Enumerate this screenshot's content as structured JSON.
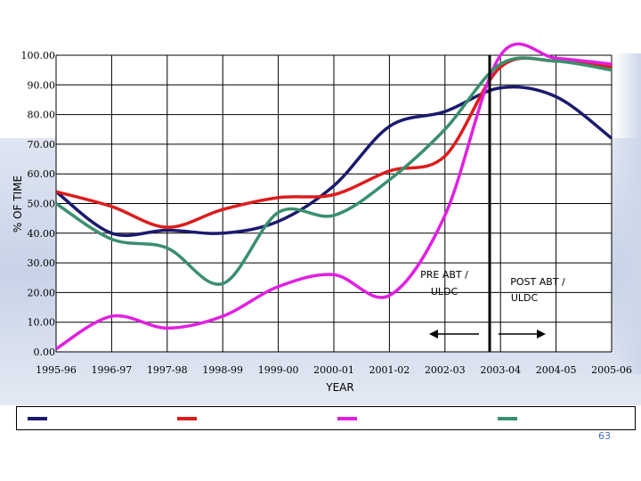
{
  "chart_data": {
    "type": "line",
    "ylabel": "% OF TIME",
    "xlabel": "YEAR",
    "ylim": [
      0,
      100
    ],
    "yticks": [
      "0.00",
      "10.00",
      "20.00",
      "30.00",
      "40.00",
      "50.00",
      "60.00",
      "70.00",
      "80.00",
      "90.00",
      "100.00"
    ],
    "categories": [
      "1995-96",
      "1996-97",
      "1997-98",
      "1998-99",
      "1999-00",
      "2000-01",
      "2001-02",
      "2002-03",
      "2003-04",
      "2004-05",
      "2005-06"
    ],
    "grid": true,
    "series": [
      {
        "color": "#1a1a6e",
        "values": [
          54,
          40,
          41,
          40,
          44,
          56,
          76,
          81,
          89,
          86,
          72
        ]
      },
      {
        "color": "#dd1c1c",
        "values": [
          54,
          49,
          42,
          48,
          52,
          53,
          61,
          66,
          96,
          98,
          96
        ]
      },
      {
        "color": "#e020e0",
        "values": [
          1,
          12,
          8,
          12,
          22,
          26,
          19,
          46,
          100,
          99,
          97
        ]
      },
      {
        "color": "#3a8f6e",
        "values": [
          50,
          38,
          35,
          23,
          47,
          46,
          58,
          75,
          97,
          98,
          95
        ]
      }
    ],
    "annotations": {
      "pre_label": "PRE ABT / ULDC",
      "post_label": "POST ABT / ULDC"
    },
    "divider_after_category": "2002-03"
  },
  "page_number": "63"
}
